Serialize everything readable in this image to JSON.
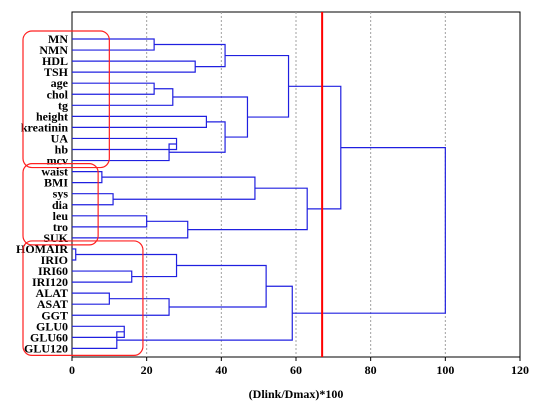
{
  "chart_data": {
    "type": "dendrogram",
    "title": "",
    "xlabel": "(Dlink/Dmax)*100",
    "ylabel": "",
    "xlim": [
      0,
      120
    ],
    "xticks": [
      0,
      20,
      40,
      60,
      80,
      100,
      120
    ],
    "grid": "vertical dotted",
    "leaves": [
      "MN",
      "NMN",
      "HDL",
      "TSH",
      "age",
      "chol",
      "tg",
      "height",
      "kreatinin",
      "UA",
      "hb",
      "mcv",
      "waist",
      "BMI",
      "sys",
      "dia",
      "leu",
      "tro",
      "SUK",
      "HOMAIR",
      "IRIO",
      "IRI60",
      "IRI120",
      "ALAT",
      "ASAT",
      "GGT",
      "GLU0",
      "GLU60",
      "GLU120"
    ],
    "merges": [
      {
        "a": "tg",
        "b": "chol",
        "height": 26
      },
      {
        "a": "GLU60",
        "b": "GLU120",
        "height": 12
      },
      {
        "a": "leu",
        "b": "tro",
        "height": 20
      }
    ],
    "cut_line": 67,
    "cluster_boxes": [
      {
        "first": "MN",
        "last": "mcv"
      },
      {
        "first": "waist",
        "last": "SUK"
      },
      {
        "first": "HOMAIR",
        "last": "GLU120"
      }
    ],
    "colors": {
      "tree": "#2020e0",
      "cut": "#ff0000",
      "box": "#ff2020",
      "grid": "#a0a0a0"
    }
  }
}
